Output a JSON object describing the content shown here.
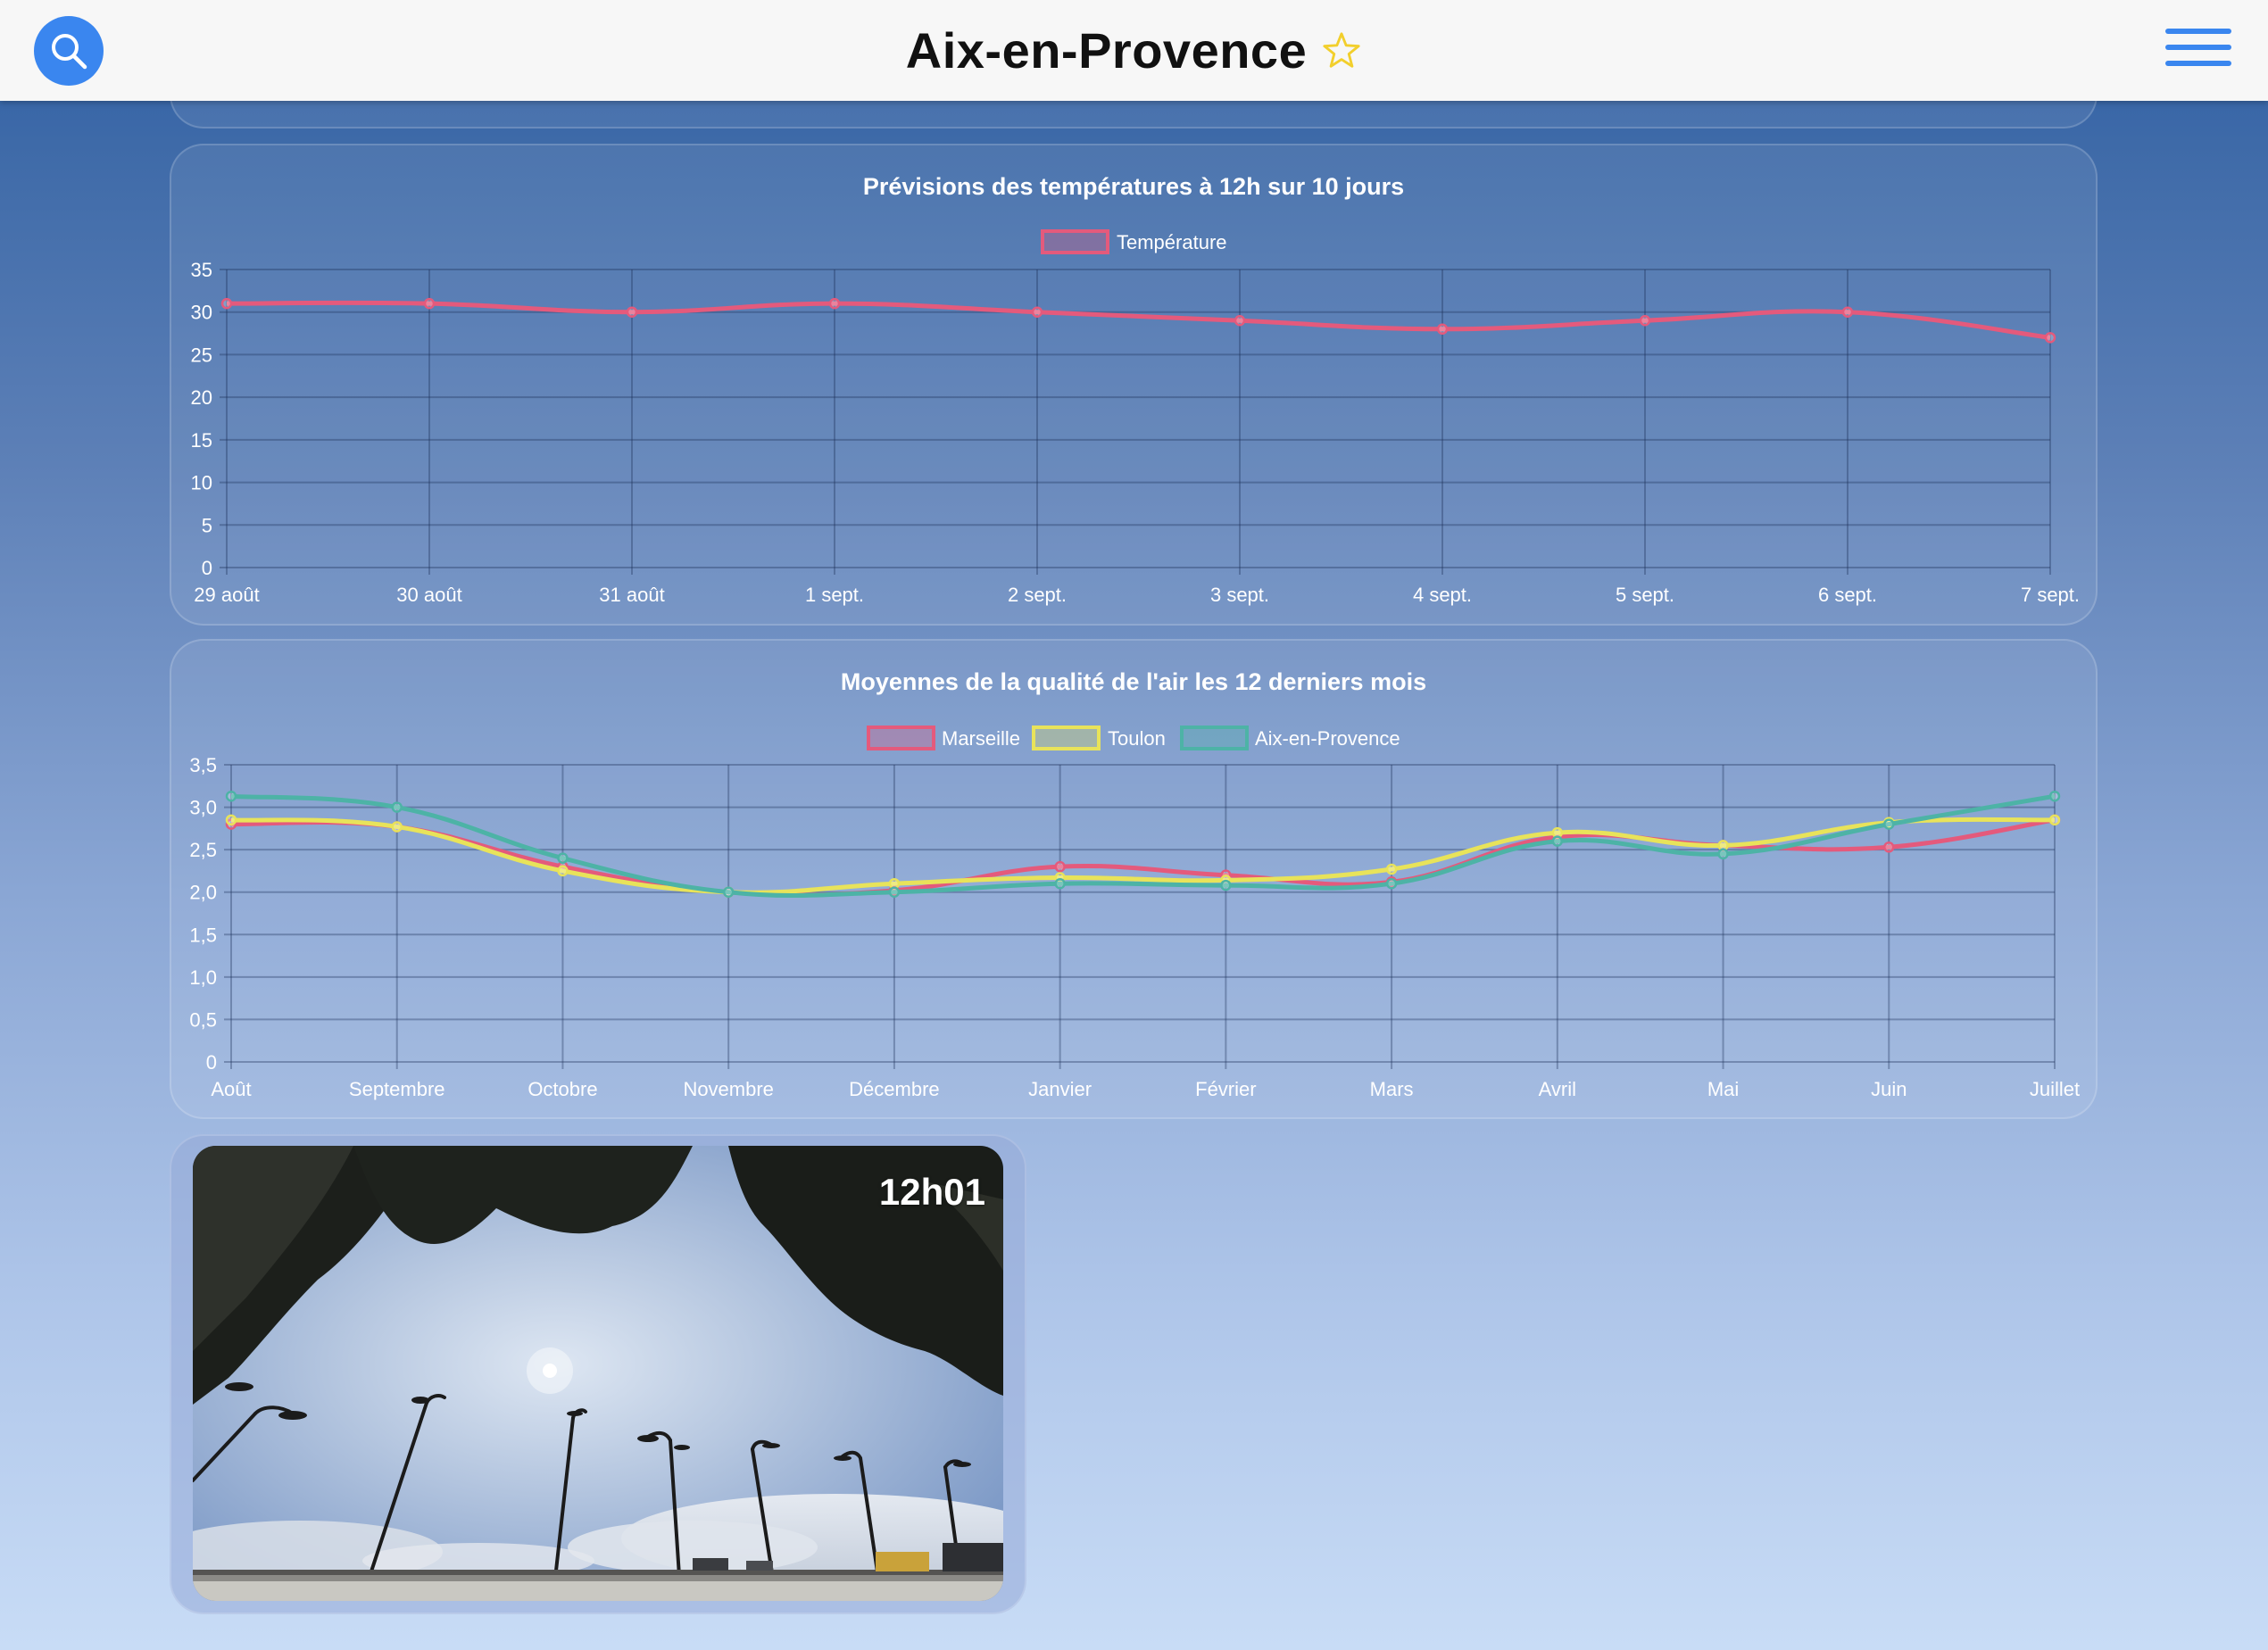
{
  "header": {
    "title": "Aix-en-Provence",
    "icons": {
      "search": "search-icon",
      "favorite": "star-outline-icon",
      "menu": "hamburger-menu-icon"
    },
    "colors": {
      "accent": "#3a86ef",
      "star": "#f2cf2c",
      "background": "#f7f7f7"
    }
  },
  "temperature_chart": {
    "title": "Prévisions des températures à 12h sur 10 jours",
    "legend": [
      "Température"
    ],
    "chart_data": {
      "type": "line",
      "title": "Prévisions des températures à 12h sur 10 jours",
      "categories": [
        "29 août",
        "30 août",
        "31 août",
        "1 sept.",
        "2 sept.",
        "3 sept.",
        "4 sept.",
        "5 sept.",
        "6 sept.",
        "7 sept."
      ],
      "series": [
        {
          "name": "Température",
          "color": "#e45a7c",
          "values": [
            31,
            31,
            30,
            31,
            30,
            29,
            28,
            29,
            30,
            27
          ]
        }
      ],
      "ylim": [
        0,
        35
      ],
      "yticks": [
        "35",
        "30",
        "25",
        "20",
        "15",
        "10",
        "5",
        "0"
      ],
      "grid": true,
      "legend_position": "top-center"
    }
  },
  "air_chart": {
    "title": "Moyennes de la qualité de l'air les 12 derniers mois",
    "legend": [
      "Marseille",
      "Toulon",
      "Aix-en-Provence"
    ],
    "chart_data": {
      "type": "line",
      "title": "Moyennes de la qualité de l'air les 12 derniers mois",
      "categories": [
        "Août",
        "Septembre",
        "Octobre",
        "Novembre",
        "Décembre",
        "Janvier",
        "Février",
        "Mars",
        "Avril",
        "Mai",
        "Juin",
        "Juillet"
      ],
      "series": [
        {
          "name": "Marseille",
          "color": "#e45a7c",
          "values": [
            2.8,
            2.77,
            2.3,
            2.0,
            2.02,
            2.3,
            2.2,
            2.12,
            2.65,
            2.55,
            2.53,
            2.85
          ]
        },
        {
          "name": "Toulon",
          "color": "#e8e35a",
          "values": [
            2.85,
            2.77,
            2.25,
            2.0,
            2.1,
            2.17,
            2.14,
            2.27,
            2.7,
            2.55,
            2.82,
            2.85
          ]
        },
        {
          "name": "Aix-en-Provence",
          "color": "#4db3a6",
          "values": [
            3.13,
            3.0,
            2.4,
            2.0,
            2.0,
            2.1,
            2.08,
            2.1,
            2.6,
            2.45,
            2.8,
            3.13
          ]
        }
      ],
      "ylim": [
        0,
        3.5
      ],
      "yticks": [
        "3,5",
        "3,0",
        "2,5",
        "2,0",
        "1,5",
        "1,0",
        "0,5",
        "0"
      ],
      "grid": true,
      "legend_position": "top-center"
    }
  },
  "webcam": {
    "time": "12h01"
  }
}
